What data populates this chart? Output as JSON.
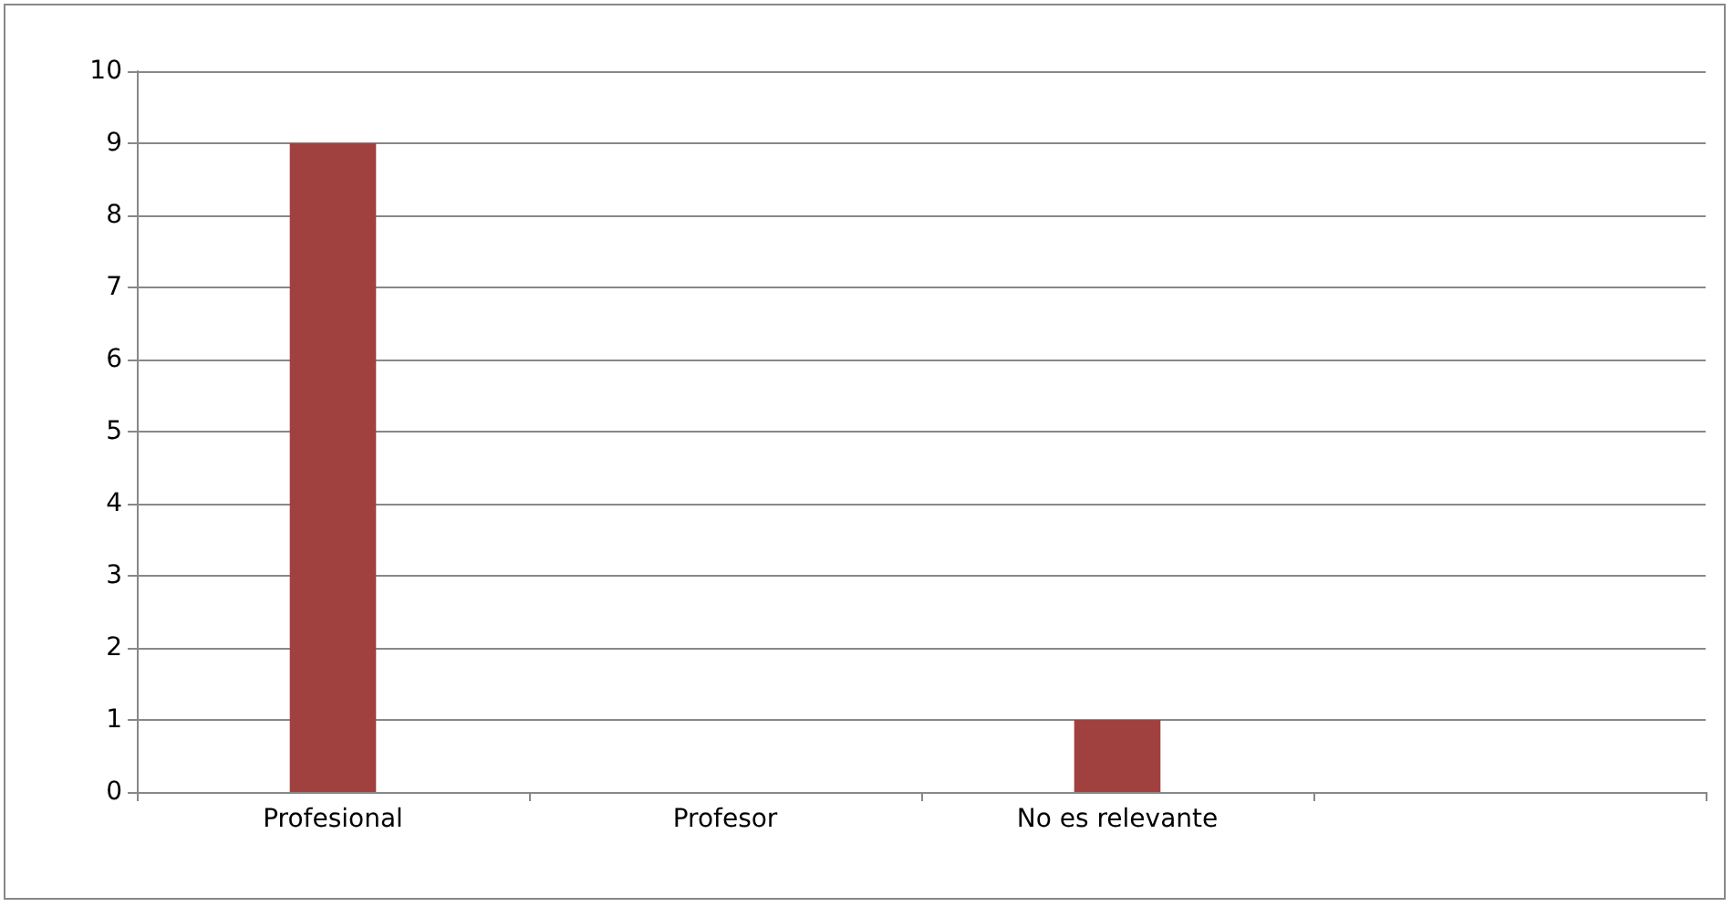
{
  "chart_data": {
    "type": "bar",
    "categories": [
      "Profesional",
      "Profesor",
      "No es relevante",
      null
    ],
    "values": [
      9,
      0,
      1,
      null
    ],
    "color": "#a0413f",
    "ylim": [
      0,
      10
    ],
    "yticks": [
      0,
      1,
      2,
      3,
      4,
      5,
      6,
      7,
      8,
      9,
      10
    ],
    "grid": "y"
  }
}
